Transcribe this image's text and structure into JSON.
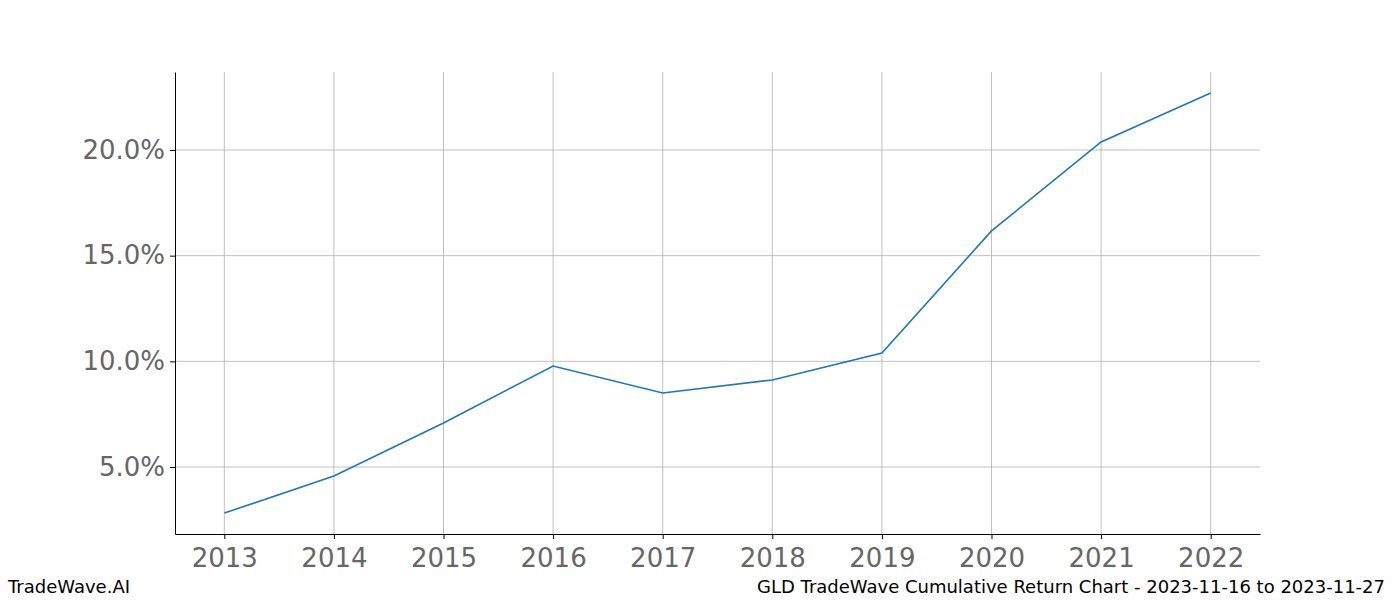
{
  "chart_data": {
    "type": "line",
    "title": "GLD TradeWave Cumulative Return Chart - 2023-11-16 to 2023-11-27",
    "annotations": [
      "TradeWave.AI"
    ],
    "x": [
      2013,
      2014,
      2015,
      2016,
      2017,
      2018,
      2019,
      2020,
      2021,
      2022
    ],
    "values": [
      2.82,
      4.57,
      7.08,
      9.78,
      8.5,
      9.12,
      10.39,
      16.17,
      20.38,
      22.7
    ],
    "color": "#1f77b4",
    "xlim": [
      2012.55,
      2022.45
    ],
    "xticks": [
      2013,
      2014,
      2015,
      2016,
      2017,
      2018,
      2019,
      2020,
      2021,
      2022
    ],
    "ylim": [
      1.83,
      23.69
    ],
    "yticks": [
      {
        "value": 5,
        "label": "5.0%"
      },
      {
        "value": 10,
        "label": "10.0%"
      },
      {
        "value": 15,
        "label": "15.0%"
      },
      {
        "value": 20,
        "label": "20.0%"
      }
    ],
    "grid": true
  }
}
